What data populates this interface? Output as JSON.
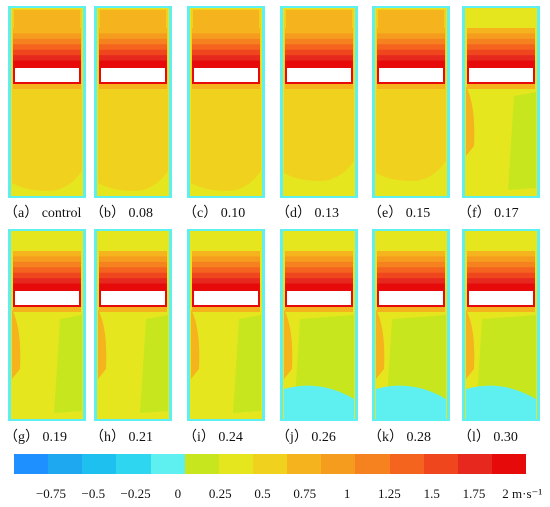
{
  "panels": [
    {
      "caption": "（a） control",
      "variant": 0
    },
    {
      "caption": "（b） 0.08",
      "variant": 0
    },
    {
      "caption": "（c） 0.10",
      "variant": 0
    },
    {
      "caption": "（d） 0.13",
      "variant": 1
    },
    {
      "caption": "（e） 0.15",
      "variant": 1
    },
    {
      "caption": "（f） 0.17",
      "variant": 2
    },
    {
      "caption": "（g） 0.19",
      "variant": 2
    },
    {
      "caption": "（h） 0.21",
      "variant": 2
    },
    {
      "caption": "（i） 0.24",
      "variant": 2
    },
    {
      "caption": "（j） 0.26",
      "variant": 3
    },
    {
      "caption": "（k） 0.28",
      "variant": 3
    },
    {
      "caption": "（l） 0.30",
      "variant": 3
    }
  ],
  "legend": {
    "colors": [
      "#1e90ff",
      "#1ea8f0",
      "#1ec0f0",
      "#2ed6f0",
      "#5ef0f0",
      "#c8e61e",
      "#e6e61e",
      "#f0d21e",
      "#f5b41e",
      "#f59c1e",
      "#f5821e",
      "#f5641e",
      "#f0461e",
      "#e6281e",
      "#e60a0a"
    ],
    "ticks": [
      "−0.75",
      "−0.5",
      "−0.25",
      "0",
      "0.25",
      "0.5",
      "0.75",
      "1",
      "1.25",
      "1.5",
      "1.75",
      "2 m·s⁻¹"
    ]
  },
  "field_colors": {
    "cyan": "#5ef0f0",
    "light_green": "#c8e61e",
    "yellow": "#e6e61e",
    "light_orange": "#f0d21e",
    "orange": "#f5b41e",
    "band": [
      "#f5b41e",
      "#f59c1e",
      "#f5821e",
      "#f5641e",
      "#f0461e",
      "#e6281e",
      "#e60a0a"
    ],
    "plate": "#ffffff",
    "plate_outline": "#e60a0a"
  }
}
